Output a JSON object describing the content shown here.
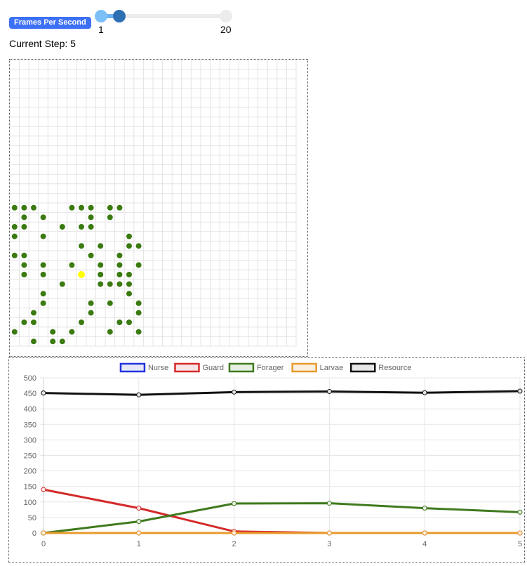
{
  "controls": {
    "fps_label": "Frames Per Second",
    "fps_min": "1",
    "fps_max": "20",
    "fps_value": 2,
    "step_label": "Current Step:",
    "step_value": "5"
  },
  "grid": {
    "cols": 30,
    "rows": 30,
    "agent_color": "#3a7a10",
    "special_color": "#ffff00",
    "agents": [
      [
        0,
        15
      ],
      [
        1,
        15
      ],
      [
        2,
        15
      ],
      [
        6,
        15
      ],
      [
        7,
        15
      ],
      [
        8,
        15
      ],
      [
        10,
        15
      ],
      [
        11,
        15
      ],
      [
        1,
        16
      ],
      [
        3,
        16
      ],
      [
        8,
        16
      ],
      [
        10,
        16
      ],
      [
        0,
        17
      ],
      [
        1,
        17
      ],
      [
        5,
        17
      ],
      [
        7,
        17
      ],
      [
        8,
        17
      ],
      [
        0,
        18
      ],
      [
        3,
        18
      ],
      [
        12,
        18
      ],
      [
        7,
        19
      ],
      [
        9,
        19
      ],
      [
        12,
        19
      ],
      [
        13,
        19
      ],
      [
        0,
        20
      ],
      [
        1,
        20
      ],
      [
        8,
        20
      ],
      [
        11,
        20
      ],
      [
        1,
        21
      ],
      [
        3,
        21
      ],
      [
        6,
        21
      ],
      [
        9,
        21
      ],
      [
        11,
        21
      ],
      [
        13,
        21
      ],
      [
        1,
        22
      ],
      [
        3,
        22
      ],
      [
        9,
        22
      ],
      [
        11,
        22
      ],
      [
        12,
        22
      ],
      [
        5,
        23
      ],
      [
        9,
        23
      ],
      [
        10,
        23
      ],
      [
        11,
        23
      ],
      [
        12,
        23
      ],
      [
        3,
        24
      ],
      [
        12,
        24
      ],
      [
        3,
        25
      ],
      [
        8,
        25
      ],
      [
        10,
        25
      ],
      [
        13,
        25
      ],
      [
        2,
        26
      ],
      [
        8,
        26
      ],
      [
        13,
        26
      ],
      [
        1,
        27
      ],
      [
        2,
        27
      ],
      [
        7,
        27
      ],
      [
        11,
        27
      ],
      [
        12,
        27
      ],
      [
        0,
        28
      ],
      [
        4,
        28
      ],
      [
        6,
        28
      ],
      [
        10,
        28
      ],
      [
        13,
        28
      ],
      [
        2,
        29
      ],
      [
        4,
        29
      ],
      [
        5,
        29
      ]
    ],
    "special": [
      [
        7,
        22
      ]
    ]
  },
  "chart_data": {
    "type": "line",
    "x": [
      0,
      1,
      2,
      3,
      4,
      5
    ],
    "ylim": [
      0,
      500
    ],
    "yticks": [
      0,
      50,
      100,
      150,
      200,
      250,
      300,
      350,
      400,
      450,
      500
    ],
    "grid": true,
    "legend_position": "top",
    "series": [
      {
        "name": "Nurse",
        "color": "#2233dd",
        "fill": "#e6e8f8",
        "values": [
          0,
          0,
          0,
          0,
          0,
          0
        ]
      },
      {
        "name": "Guard",
        "color": "#d42a2a",
        "fill": "#f8e6e6",
        "values": [
          140,
          80,
          5,
          0,
          0,
          0
        ]
      },
      {
        "name": "Forager",
        "color": "#3f7a1e",
        "fill": "#e6efe1",
        "values": [
          0,
          37,
          95,
          96,
          80,
          67
        ]
      },
      {
        "name": "Larvae",
        "color": "#e89a2c",
        "fill": "#fbefe2",
        "values": [
          0,
          0,
          0,
          0,
          0,
          0
        ]
      },
      {
        "name": "Resource",
        "color": "#111111",
        "fill": "#e6e6e6",
        "values": [
          451,
          445,
          454,
          456,
          452,
          457
        ]
      }
    ]
  }
}
